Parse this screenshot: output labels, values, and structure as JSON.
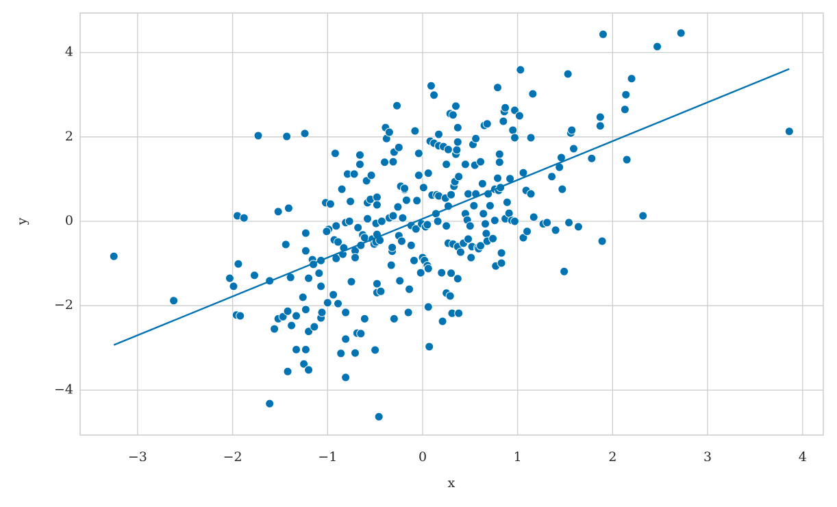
{
  "chart_data": {
    "type": "scatter",
    "x_label": "x",
    "y_label": "y",
    "color": "#0173b2",
    "grid": true,
    "xlim": [
      -3.605,
      4.218
    ],
    "ylim": [
      -5.065,
      4.935
    ],
    "xticks": [
      {
        "value": -3,
        "label": "−3"
      },
      {
        "value": -2,
        "label": "−2"
      },
      {
        "value": -1,
        "label": "−1"
      },
      0,
      1,
      2,
      3,
      4
    ],
    "yticks": [
      {
        "value": -4,
        "label": "−4"
      },
      {
        "value": -2,
        "label": "−2"
      },
      0,
      2,
      4
    ],
    "x": [
      -3.25,
      -2.62,
      -2.03,
      -1.99,
      -1.95,
      -1.88,
      -1.94,
      -1.96,
      -1.92,
      -1.77,
      -1.73,
      -1.61,
      -1.61,
      -1.56,
      -1.52,
      -1.52,
      -1.47,
      -1.44,
      -1.43,
      -1.42,
      -1.42,
      -1.41,
      -1.39,
      -1.38,
      -1.33,
      -1.33,
      -1.26,
      -1.24,
      -1.23,
      -1.23,
      -1.23,
      -1.23,
      -1.25,
      -1.2,
      -1.2,
      -1.2,
      -1.16,
      -1.15,
      -1.14,
      -1.09,
      -1.07,
      -1.07,
      -1.07,
      -1.06,
      -1.02,
      -0.97,
      -0.99,
      -1.01,
      -1.0,
      -0.94,
      -0.92,
      -0.93,
      -0.91,
      -0.89,
      -0.91,
      -0.89,
      -0.86,
      -0.85,
      -0.84,
      -0.83,
      -0.81,
      -0.81,
      -0.81,
      -0.81,
      -0.79,
      -0.77,
      -0.76,
      -0.75,
      -0.72,
      -0.71,
      -0.71,
      -0.71,
      -0.68,
      -0.69,
      -0.65,
      -0.66,
      -0.66,
      -0.65,
      -0.63,
      -0.61,
      -0.61,
      -0.59,
      -0.58,
      -0.58,
      -0.55,
      -0.54,
      -0.53,
      -0.51,
      -0.5,
      -0.49,
      -0.49,
      -0.48,
      -0.48,
      -0.48,
      -0.48,
      -0.48,
      -0.46,
      -0.45,
      -0.44,
      -0.43,
      -0.4,
      -0.39,
      -0.38,
      -0.35,
      -0.35,
      -0.33,
      -0.32,
      -0.32,
      -0.31,
      -0.31,
      -0.3,
      -0.3,
      -0.27,
      -0.26,
      -0.25,
      -0.25,
      -0.24,
      -0.23,
      -0.22,
      -0.21,
      -0.19,
      -0.19,
      -0.17,
      -0.15,
      -0.14,
      -0.12,
      -0.12,
      -0.09,
      -0.08,
      -0.07,
      -0.06,
      -0.04,
      -0.04,
      -0.02,
      -0.01,
      0,
      0.01,
      0.02,
      0.03,
      0.05,
      0.05,
      0.06,
      0.06,
      0.07,
      0.06,
      0.08,
      0.09,
      0.1,
      0.12,
      0.12,
      0.14,
      0.15,
      0.17,
      0.17,
      0.16,
      0.17,
      0.2,
      0.21,
      0.22,
      0.24,
      0.25,
      0.25,
      0.25,
      0.27,
      0.27,
      0.27,
      0.29,
      0.29,
      0.3,
      0.31,
      0.3,
      0.32,
      0.32,
      0.33,
      0.34,
      0.35,
      0.35,
      0.36,
      0.37,
      0.37,
      0.38,
      0.37,
      0.37,
      0.38,
      0.4,
      0.43,
      0.45,
      0.45,
      0.47,
      0.48,
      0.48,
      0.5,
      0.51,
      0.52,
      0.53,
      0.54,
      0.55,
      0.56,
      0.56,
      0.58,
      0.59,
      0.61,
      0.61,
      0.63,
      0.64,
      0.65,
      0.66,
      0.67,
      0.68,
      0.68,
      0.69,
      0.71,
      0.74,
      0.76,
      0.76,
      0.77,
      0.79,
      0.79,
      0.8,
      0.81,
      0.81,
      0.82,
      0.83,
      0.83,
      0.85,
      0.86,
      0.87,
      0.87,
      0.89,
      0.91,
      0.92,
      0.94,
      0.95,
      0.97,
      0.97,
      0.97,
      1.02,
      1.03,
      1.06,
      1.06,
      1.09,
      1.1,
      1.14,
      1.14,
      1.16,
      1.17,
      1.27,
      1.31,
      1.36,
      1.4,
      1.44,
      1.46,
      1.47,
      1.49,
      1.53,
      1.54,
      1.56,
      1.57,
      1.59,
      1.64,
      1.78,
      1.87,
      1.87,
      1.89,
      1.9,
      2.13,
      2.14,
      2.15,
      2.2,
      2.32,
      2.47,
      2.72,
      3.86
    ],
    "y": [
      -0.83,
      -1.88,
      -1.35,
      -1.54,
      0.13,
      0.08,
      -1.01,
      -2.22,
      -2.24,
      -1.28,
      2.03,
      -1.41,
      -4.32,
      -2.55,
      0.23,
      -2.31,
      -2.26,
      -0.55,
      2.01,
      -2.13,
      -3.56,
      0.31,
      -1.33,
      -2.47,
      -2.24,
      -3.04,
      -1.8,
      2.08,
      -0.28,
      -0.7,
      -2.09,
      -3.04,
      -3.38,
      -3.52,
      -2.61,
      -1.35,
      -0.91,
      -1.02,
      -2.5,
      -1.23,
      -1.54,
      -0.93,
      -2.29,
      -2.16,
      0.44,
      0.41,
      -0.19,
      -0.24,
      -1.93,
      -1.74,
      1.61,
      -0.44,
      -0.11,
      -0.49,
      -0.88,
      -1.95,
      -3.13,
      0.76,
      -0.78,
      -0.63,
      -0.03,
      -3.7,
      -2.16,
      -2.79,
      1.12,
      0,
      0.47,
      -1.43,
      1.12,
      -0.7,
      -0.86,
      -3.12,
      -0.15,
      -2.65,
      -2.66,
      1.35,
      1.57,
      -0.57,
      -0.32,
      -0.39,
      -2.31,
      0.96,
      0.06,
      0.44,
      0.52,
      1.09,
      -0.42,
      -0.54,
      -3.05,
      -0.49,
      -0.05,
      -1.48,
      0.57,
      0.39,
      -0.31,
      -1.69,
      -4.63,
      -0.45,
      -1.66,
      0,
      1.4,
      2.22,
      1.96,
      2.11,
      0.08,
      -1.04,
      -0.71,
      -0.62,
      0.13,
      1.41,
      1.64,
      -2.31,
      2.74,
      0.34,
      1.75,
      -0.34,
      -1.41,
      0.83,
      -0.47,
      0.08,
      0.75,
      0.78,
      0.5,
      -2.16,
      -1.61,
      -0.1,
      -0.57,
      -0.93,
      2.14,
      -0.18,
      0.49,
      1.09,
      1.61,
      -1.22,
      -0.06,
      -0.86,
      0.8,
      -0.93,
      -0.13,
      -0.08,
      -1.05,
      -2.03,
      -1.12,
      -2.97,
      1.14,
      1.9,
      3.21,
      0.62,
      2.99,
      1.85,
      0.18,
      0.63,
      0.6,
      1.79,
      0,
      2.06,
      -1.22,
      -2.37,
      1.77,
      0.55,
      -1.7,
      1.35,
      -0.11,
      0.36,
      -0.52,
      1.7,
      -1.77,
      2.55,
      -1.23,
      -2.18,
      0.63,
      -0.54,
      2.52,
      0.83,
      0.94,
      2.73,
      1.59,
      1.69,
      -0.6,
      1.88,
      -2.18,
      -1.36,
      2.22,
      1.06,
      -0.73,
      -0.52,
      0.18,
      1.35,
      0.03,
      -0.42,
      0.65,
      -0.11,
      -0.86,
      -0.6,
      1.82,
      0.37,
      1.33,
      1.96,
      0.65,
      -0.63,
      -0.65,
      1.41,
      -0.58,
      0.89,
      0.18,
      2.27,
      -0.06,
      -0.29,
      -0.47,
      2.31,
      0.65,
      0.37,
      -0.41,
      0.76,
      0.02,
      -1.06,
      3.17,
      1.02,
      0.73,
      1.59,
      1.4,
      0.8,
      -0.75,
      -0.99,
      2.37,
      2.6,
      2.69,
      0.06,
      0.45,
      0.19,
      1.01,
      0.02,
      2.16,
      2.63,
      1.98,
      0,
      2.5,
      3.59,
      -0.39,
      1.15,
      0.73,
      -0.24,
      1.98,
      0.65,
      3.02,
      0.1,
      -0.06,
      -0.03,
      1.06,
      -0.21,
      1.28,
      1.51,
      0.76,
      -1.19,
      3.49,
      -0.03,
      2.09,
      2.16,
      1.72,
      -0.13,
      1.49,
      2.47,
      2.26,
      -0.47,
      4.43,
      2.65,
      3.0,
      1.46,
      3.38,
      0.13,
      4.14,
      4.46,
      2.13
    ],
    "fit": {
      "x": [
        -3.25,
        3.86
      ],
      "y": [
        -2.93,
        3.61
      ]
    }
  }
}
